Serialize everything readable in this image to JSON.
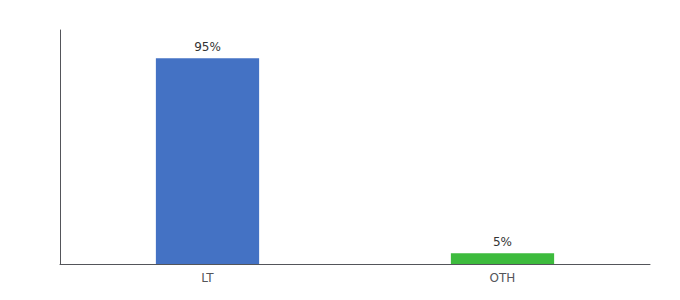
{
  "chart_data": {
    "type": "bar",
    "categories": [
      "LT",
      "OTH"
    ],
    "values": [
      95,
      5
    ],
    "value_labels": [
      "95%",
      "5%"
    ],
    "colors": [
      "#4472c4",
      "#3dbb3d"
    ],
    "ylim": [
      0,
      108
    ],
    "grid": false,
    "data_labels": true,
    "tick_labels": "x"
  }
}
